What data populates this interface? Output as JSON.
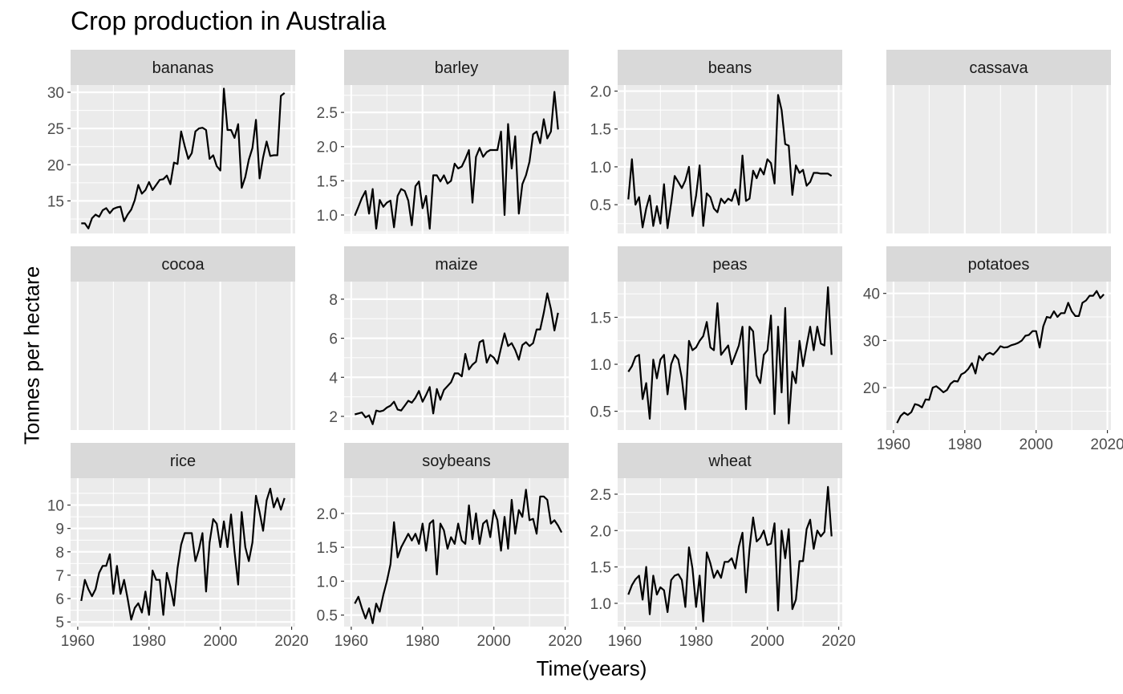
{
  "chart_data": {
    "type": "line",
    "facet": "wrap",
    "title": "Crop production in Australia",
    "xlabel": "Time(years)",
    "ylabel": "Tonnes per hectare",
    "x_ticks": [
      1960,
      1980,
      2000,
      2020
    ],
    "x_tick_labels": [
      "1960",
      "1980",
      "2000",
      "2020"
    ],
    "xlim": [
      1958,
      2021
    ],
    "grid": true,
    "legend": "none",
    "line_color": "#000000",
    "panel_background": "#EBEBEB",
    "strip_background": "#D9D9D9",
    "series": [
      {
        "name": "bananas",
        "x_start": 1961,
        "ylim": [
          10.5,
          31
        ],
        "y_ticks": [
          15,
          20,
          25,
          30
        ],
        "values": [
          11.9,
          11.9,
          11.2,
          12.6,
          13.1,
          12.8,
          13.7,
          14.0,
          13.3,
          13.9,
          14.1,
          14.2,
          12.2,
          13.1,
          13.8,
          15.1,
          17.2,
          16.0,
          16.5,
          17.6,
          16.5,
          17.2,
          17.9,
          18.0,
          18.5,
          17.3,
          20.3,
          20.1,
          24.6,
          22.6,
          20.8,
          21.6,
          24.6,
          25.0,
          25.1,
          24.8,
          20.8,
          21.3,
          19.8,
          19.2,
          30.5,
          24.8,
          24.8,
          23.7,
          25.6,
          16.8,
          18.3,
          20.7,
          22.3,
          26.2,
          18.1,
          21.0,
          23.2,
          21.2,
          21.3,
          21.3,
          29.5,
          29.9
        ]
      },
      {
        "name": "barley",
        "x_start": 1961,
        "ylim": [
          0.73,
          2.9
        ],
        "y_ticks": [
          1.0,
          1.5,
          2.0,
          2.5
        ],
        "values": [
          0.99,
          1.12,
          1.25,
          1.35,
          1.02,
          1.38,
          0.8,
          1.22,
          1.12,
          1.18,
          1.21,
          0.82,
          1.28,
          1.38,
          1.35,
          1.21,
          0.85,
          1.42,
          1.49,
          1.1,
          1.28,
          0.8,
          1.58,
          1.58,
          1.49,
          1.58,
          1.46,
          1.5,
          1.75,
          1.68,
          1.71,
          1.82,
          1.95,
          1.18,
          1.85,
          1.98,
          1.85,
          1.92,
          1.95,
          1.95,
          1.95,
          2.22,
          1.0,
          2.33,
          1.68,
          2.15,
          1.02,
          1.45,
          1.58,
          1.78,
          2.18,
          2.22,
          2.05,
          2.4,
          2.12,
          2.22,
          2.8,
          2.25
        ]
      },
      {
        "name": "beans",
        "x_start": 1961,
        "ylim": [
          0.12,
          2.08
        ],
        "y_ticks": [
          0.5,
          1.0,
          1.5,
          2.0
        ],
        "values": [
          0.57,
          1.1,
          0.5,
          0.6,
          0.2,
          0.45,
          0.62,
          0.22,
          0.48,
          0.25,
          0.77,
          0.19,
          0.52,
          0.88,
          0.8,
          0.72,
          0.82,
          1.0,
          0.35,
          0.62,
          1.02,
          0.22,
          0.65,
          0.6,
          0.45,
          0.4,
          0.58,
          0.52,
          0.58,
          0.55,
          0.7,
          0.5,
          1.15,
          0.55,
          0.58,
          0.95,
          0.85,
          0.98,
          0.9,
          1.1,
          1.05,
          0.78,
          1.95,
          1.75,
          1.3,
          1.28,
          0.63,
          1.02,
          0.92,
          0.96,
          0.75,
          0.8,
          0.92,
          0.92,
          0.91,
          0.91,
          0.91,
          0.88
        ]
      },
      {
        "name": "cassava",
        "x_start": 1961,
        "ylim": [
          0,
          1
        ],
        "y_ticks": [],
        "values": []
      },
      {
        "name": "cocoa",
        "x_start": 1961,
        "ylim": [
          0,
          1
        ],
        "y_ticks": [],
        "values": []
      },
      {
        "name": "maize",
        "x_start": 1961,
        "ylim": [
          1.3,
          8.9
        ],
        "y_ticks": [
          2,
          4,
          6,
          8
        ],
        "values": [
          2.1,
          2.15,
          2.2,
          1.95,
          2.05,
          1.6,
          2.3,
          2.25,
          2.3,
          2.45,
          2.55,
          2.75,
          2.35,
          2.3,
          2.55,
          2.8,
          2.7,
          2.95,
          3.3,
          2.75,
          3.1,
          3.5,
          2.15,
          3.4,
          2.85,
          3.35,
          3.55,
          3.75,
          4.2,
          4.2,
          4.05,
          5.2,
          4.4,
          4.65,
          4.8,
          5.8,
          5.9,
          4.75,
          5.15,
          5.0,
          4.7,
          5.5,
          6.25,
          5.6,
          5.75,
          5.4,
          4.9,
          5.65,
          5.8,
          5.6,
          5.75,
          6.45,
          6.45,
          7.3,
          8.3,
          7.5,
          6.4,
          7.3
        ]
      },
      {
        "name": "peas",
        "x_start": 1961,
        "ylim": [
          0.3,
          1.88
        ],
        "y_ticks": [
          0.5,
          1.0,
          1.5
        ],
        "values": [
          0.92,
          0.98,
          1.08,
          1.1,
          0.63,
          0.8,
          0.42,
          1.05,
          0.85,
          1.05,
          1.1,
          0.68,
          1.0,
          1.1,
          1.05,
          0.85,
          0.52,
          1.25,
          1.15,
          1.18,
          1.25,
          1.3,
          1.45,
          1.18,
          1.15,
          1.65,
          1.1,
          1.15,
          1.2,
          1.0,
          1.1,
          1.2,
          1.4,
          0.52,
          1.4,
          1.35,
          0.88,
          0.8,
          1.1,
          1.15,
          1.52,
          0.47,
          1.4,
          0.7,
          1.6,
          0.37,
          0.92,
          0.8,
          1.25,
          0.98,
          1.2,
          1.4,
          1.15,
          1.4,
          1.22,
          1.2,
          1.82,
          1.1
        ]
      },
      {
        "name": "potatoes",
        "x_start": 1961,
        "ylim": [
          11,
          42.5
        ],
        "y_ticks": [
          20,
          30,
          40
        ],
        "values": [
          12.5,
          14.0,
          14.7,
          14.2,
          14.8,
          16.5,
          16.3,
          15.8,
          17.5,
          17.4,
          20.0,
          20.3,
          19.7,
          19.0,
          19.5,
          20.8,
          21.4,
          21.3,
          22.8,
          23.2,
          24.0,
          25.2,
          23.0,
          26.7,
          25.8,
          27.0,
          27.4,
          27.0,
          27.8,
          28.8,
          28.5,
          28.6,
          29.0,
          29.2,
          29.5,
          30.0,
          31.0,
          31.2,
          32.0,
          32.0,
          28.5,
          33.0,
          35.0,
          34.8,
          36.2,
          35.0,
          35.8,
          35.8,
          38.0,
          36.2,
          35.2,
          35.2,
          38.0,
          38.5,
          39.5,
          39.5,
          40.5,
          39.0,
          39.8
        ]
      },
      {
        "name": "rice",
        "x_start": 1961,
        "ylim": [
          4.8,
          11.15
        ],
        "y_ticks": [
          5,
          6,
          7,
          8,
          9,
          10
        ],
        "values": [
          5.9,
          6.8,
          6.4,
          6.1,
          6.4,
          7.1,
          7.4,
          7.4,
          7.9,
          6.2,
          7.4,
          6.2,
          6.8,
          6.0,
          5.1,
          5.6,
          5.8,
          5.4,
          6.3,
          5.3,
          7.2,
          6.8,
          6.8,
          5.3,
          7.1,
          6.5,
          5.7,
          7.3,
          8.3,
          8.8,
          8.8,
          8.8,
          7.6,
          8.1,
          8.8,
          6.3,
          8.4,
          9.4,
          9.2,
          8.2,
          9.3,
          8.2,
          9.6,
          8.0,
          6.6,
          9.7,
          8.2,
          7.6,
          8.4,
          10.4,
          9.7,
          8.9,
          10.2,
          10.7,
          9.9,
          10.3,
          9.8,
          10.3
        ]
      },
      {
        "name": "soybeans",
        "x_start": 1961,
        "ylim": [
          0.33,
          2.52
        ],
        "y_ticks": [
          0.5,
          1.0,
          1.5,
          2.0
        ],
        "values": [
          0.67,
          0.77,
          0.6,
          0.45,
          0.6,
          0.38,
          0.67,
          0.55,
          0.8,
          1.0,
          1.25,
          1.87,
          1.35,
          1.5,
          1.6,
          1.7,
          1.6,
          1.7,
          1.55,
          1.85,
          1.45,
          1.85,
          1.9,
          1.1,
          1.85,
          1.75,
          1.48,
          1.65,
          1.55,
          1.85,
          1.6,
          1.55,
          2.12,
          1.62,
          2.0,
          1.55,
          1.85,
          1.9,
          1.65,
          2.05,
          1.9,
          1.45,
          1.95,
          1.48,
          2.2,
          1.7,
          2.05,
          1.95,
          2.35,
          1.9,
          1.92,
          1.7,
          2.25,
          2.25,
          2.2,
          1.85,
          1.9,
          1.82,
          1.72
        ]
      },
      {
        "name": "wheat",
        "x_start": 1961,
        "ylim": [
          0.68,
          2.72
        ],
        "y_ticks": [
          1.0,
          1.5,
          2.0,
          2.5
        ],
        "values": [
          1.12,
          1.25,
          1.33,
          1.38,
          1.05,
          1.5,
          0.85,
          1.38,
          1.12,
          1.22,
          1.18,
          0.88,
          1.32,
          1.38,
          1.4,
          1.32,
          0.95,
          1.77,
          1.48,
          0.95,
          1.38,
          0.75,
          1.7,
          1.55,
          1.35,
          1.45,
          1.35,
          1.57,
          1.57,
          1.62,
          1.48,
          1.78,
          1.97,
          1.15,
          1.75,
          2.18,
          1.85,
          1.9,
          2.0,
          1.8,
          1.82,
          2.1,
          0.9,
          2.0,
          1.62,
          2.02,
          0.92,
          1.05,
          1.58,
          1.58,
          2.02,
          2.15,
          1.75,
          2.0,
          1.92,
          1.98,
          2.6,
          1.92
        ]
      }
    ]
  }
}
